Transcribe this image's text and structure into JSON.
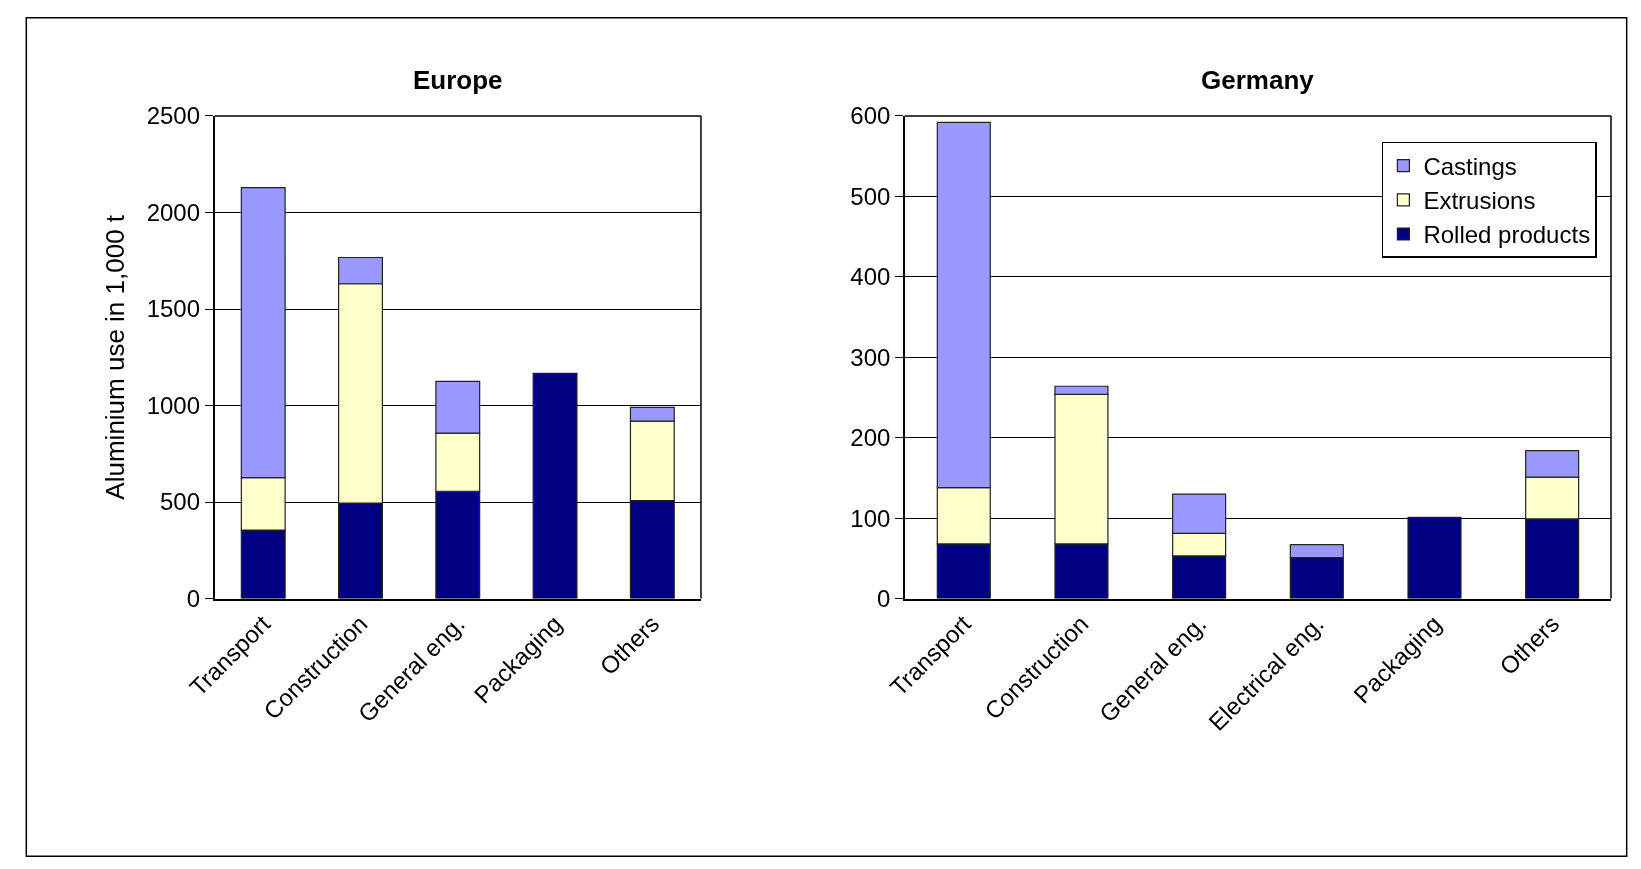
{
  "chart_data": [
    {
      "type": "bar",
      "title": "Europe",
      "ylabel": "Aluminium use in 1,000 t",
      "stacked": true,
      "grid": "y",
      "legend": false,
      "categories": [
        "Transport",
        "Construction",
        "General eng.",
        "Packaging",
        "Others"
      ],
      "ylim": [
        0,
        2500
      ],
      "yticks": [
        0,
        500,
        1000,
        1500,
        2000,
        2500
      ],
      "series": [
        {
          "color": "#000080",
          "values": [
            355,
            495,
            556,
            1167,
            507
          ]
        },
        {
          "color": "#ffffcc",
          "values": [
            272,
            1136,
            301,
            null,
            412
          ]
        },
        {
          "color": "#9999ff",
          "values": [
            1502,
            136,
            268,
            null,
            72
          ]
        }
      ]
    },
    {
      "type": "bar",
      "title": "Germany",
      "stacked": true,
      "grid": "y",
      "legend": "top right",
      "categories": [
        "Transport",
        "Construction",
        "General eng.",
        "Electrical eng.",
        "Packaging",
        "Others"
      ],
      "ylim": [
        0,
        600
      ],
      "yticks": [
        0,
        100,
        200,
        300,
        400,
        500,
        600
      ],
      "series": [
        {
          "name": "Rolled products",
          "color": "#000080",
          "values": [
            68,
            68,
            53,
            51,
            101,
            99
          ]
        },
        {
          "name": "Extrusions",
          "color": "#ffffcc",
          "values": [
            70,
            186,
            28,
            null,
            null,
            52
          ]
        },
        {
          "name": "Castings",
          "color": "#9999ff",
          "values": [
            454,
            10,
            49,
            16,
            null,
            33
          ]
        }
      ]
    }
  ]
}
